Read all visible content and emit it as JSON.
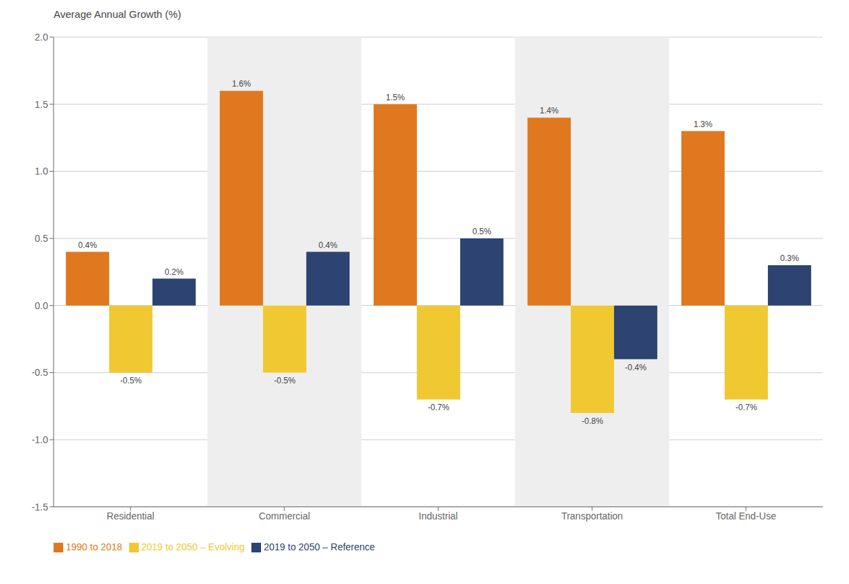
{
  "chart_data": {
    "type": "bar",
    "ylabel": "Average Annual Growth (%)",
    "categories": [
      "Residential",
      "Commercial",
      "Industrial",
      "Transportation",
      "Total End-Use"
    ],
    "series": [
      {
        "name": "1990 to 2018",
        "color": "#E07820",
        "values": [
          0.4,
          1.6,
          1.5,
          1.4,
          1.3
        ],
        "value_labels": [
          "0.4%",
          "1.6%",
          "1.5%",
          "1.4%",
          "1.3%"
        ]
      },
      {
        "name": "2019 to 2050 – Evolving",
        "color": "#F0C832",
        "values": [
          -0.5,
          -0.5,
          -0.7,
          -0.8,
          -0.7
        ],
        "value_labels": [
          "-0.5%",
          "-0.5%",
          "-0.7%",
          "-0.8%",
          "-0.7%"
        ]
      },
      {
        "name": "2019 to 2050 – Reference",
        "color": "#2D4472",
        "values": [
          0.2,
          0.4,
          0.5,
          -0.4,
          0.3
        ],
        "value_labels": [
          "0.2%",
          "0.4%",
          "0.5%",
          "-0.4%",
          "0.3%"
        ]
      }
    ],
    "ylim": [
      -1.5,
      2.0
    ],
    "yticks": [
      -1.5,
      {
        "value": -1,
        "label": "-1.0"
      },
      -0.5,
      {
        "value": 0,
        "label": "0.0"
      },
      0.5,
      {
        "value": 1,
        "label": "1.0"
      },
      1.5,
      {
        "value": 2,
        "label": "2.0"
      }
    ],
    "grid": true,
    "legend": "lower left",
    "data_labels": true
  }
}
